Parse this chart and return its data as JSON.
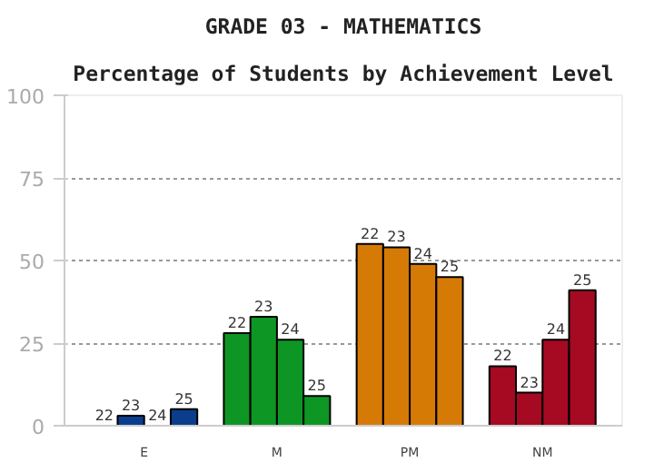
{
  "chart_data": {
    "type": "bar",
    "title": "GRADE 03 - MATHEMATICS",
    "subtitle": "Percentage of Students by Achievement Level",
    "categories": [
      "E",
      "M",
      "PM",
      "NM"
    ],
    "series": [
      {
        "name": "22",
        "colors": [
          "#0b3d8c",
          "#0d9624",
          "#d67a06",
          "#a50a22"
        ],
        "values": [
          0,
          28,
          55,
          18
        ]
      },
      {
        "name": "23",
        "colors": [
          "#0b3d8c",
          "#0d9624",
          "#d67a06",
          "#a50a22"
        ],
        "values": [
          3,
          33,
          54,
          10
        ]
      },
      {
        "name": "24",
        "colors": [
          "#0b3d8c",
          "#0d9624",
          "#d67a06",
          "#a50a22"
        ],
        "values": [
          0,
          26,
          49,
          26
        ]
      },
      {
        "name": "25",
        "colors": [
          "#0b3d8c",
          "#0d9624",
          "#d67a06",
          "#a50a22"
        ],
        "values": [
          5,
          9,
          45,
          41
        ]
      }
    ],
    "ylim": [
      0,
      100
    ],
    "yticks": [
      0,
      25,
      50,
      75,
      100
    ],
    "grid": "y"
  }
}
